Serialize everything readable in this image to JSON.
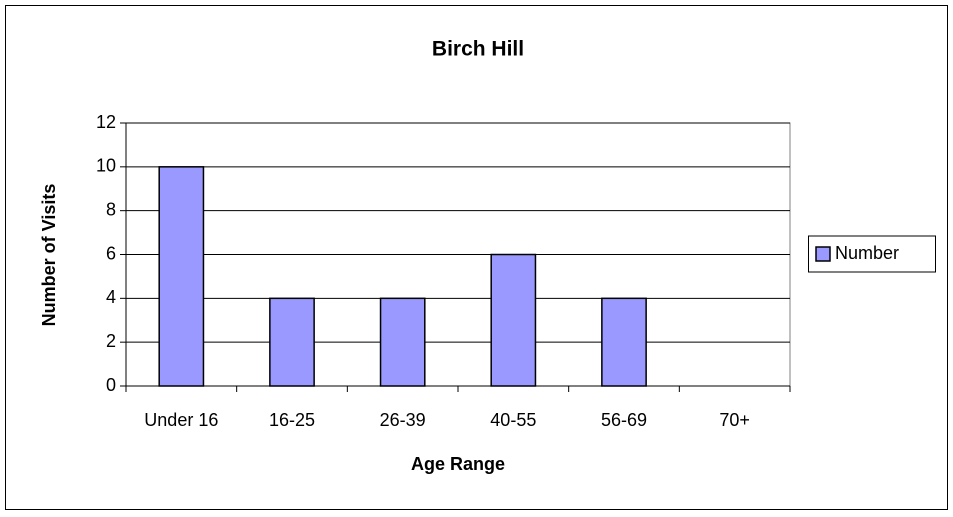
{
  "chart_data": {
    "type": "bar",
    "title": "Birch Hill",
    "x_label": "Age Range",
    "y_label": "Number of Visits",
    "categories": [
      "Under 16",
      "16-25",
      "26-39",
      "40-55",
      "56-69",
      "70+"
    ],
    "series": [
      {
        "name": "Number",
        "color": "#9999ff",
        "values": [
          10,
          4,
          4,
          6,
          4,
          0
        ]
      }
    ],
    "ylim": [
      0,
      12
    ],
    "yticks": [
      0,
      2,
      4,
      6,
      8,
      10,
      12
    ],
    "grid": true,
    "legend": "right"
  }
}
